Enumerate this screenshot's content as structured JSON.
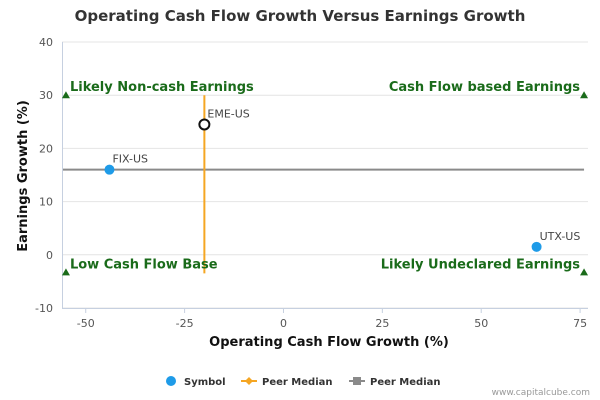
{
  "chart_data": {
    "type": "scatter",
    "title": "Operating Cash Flow Growth Versus Earnings Growth",
    "xlabel": "Operating Cash Flow Growth (%)",
    "ylabel": "Earnings Growth (%)",
    "xlim": [
      -56,
      77
    ],
    "ylim": [
      -10,
      40
    ],
    "xticks": [
      -50,
      -25,
      0,
      25,
      50,
      75
    ],
    "xtick_labels": [
      "-50",
      "-25",
      "0",
      "25",
      "50",
      "75"
    ],
    "yticks": [
      -10,
      0,
      10,
      20,
      30,
      40
    ],
    "ytick_labels": [
      "-10",
      "0",
      "10",
      "20",
      "30",
      "40"
    ],
    "grid": "horizontal",
    "points": [
      {
        "label": "FIX-US",
        "x": -44,
        "y": 16,
        "style": "filled"
      },
      {
        "label": "EME-US",
        "x": -20,
        "y": 24.5,
        "style": "open"
      },
      {
        "label": "UTX-US",
        "x": 64,
        "y": 1.5,
        "style": "filled"
      }
    ],
    "peer_median_x": -20,
    "peer_median_x_range": [
      -3.5,
      30
    ],
    "peer_median_y": 16,
    "peer_median_y_range": [
      -56,
      76
    ],
    "quadrants": [
      {
        "label": "Likely Non-cash Earnings",
        "x": -55,
        "y": 30,
        "align": "start"
      },
      {
        "label": "Cash Flow based Earnings",
        "x": 76,
        "y": 30,
        "align": "end"
      },
      {
        "label": "Low Cash Flow Base",
        "x": -55,
        "y": -3.3,
        "align": "start"
      },
      {
        "label": "Likely Undeclared Earnings",
        "x": 76,
        "y": -3.3,
        "align": "end"
      }
    ],
    "legend": [
      {
        "label": "Symbol",
        "kind": "circle"
      },
      {
        "label": "Peer Median",
        "kind": "orange-line"
      },
      {
        "label": "Peer Median",
        "kind": "gray-line"
      }
    ],
    "legend_position": "bottom-center",
    "credit": "www.capitalcube.com"
  },
  "colors": {
    "point": "#1e9be8",
    "point_outline": "#111111",
    "orange": "#f5a623",
    "gray": "#8a8a8a",
    "quadrant_text": "#1a6b1a",
    "triangle": "#1a6b1a",
    "grid": "#e4e4e4",
    "axis": "#c6d0e0"
  }
}
